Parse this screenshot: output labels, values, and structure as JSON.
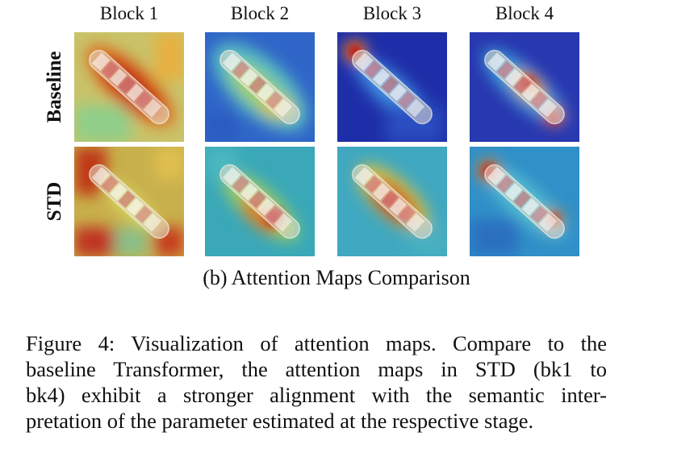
{
  "figure": {
    "columns": [
      "Block 1",
      "Block 2",
      "Block 3",
      "Block 4"
    ],
    "rows": [
      "Baseline",
      "STD"
    ],
    "subcaption": "(b) Attention Maps Comparison",
    "caption_lines": [
      "Figure 4: Visualization of attention maps. Compare to the",
      "baseline Transformer, the attention maps in STD (bk1 to",
      "bk4) exhibit a stronger alignment with the semantic inter-",
      "pretation of the parameter estimated at the respective stage."
    ]
  }
}
